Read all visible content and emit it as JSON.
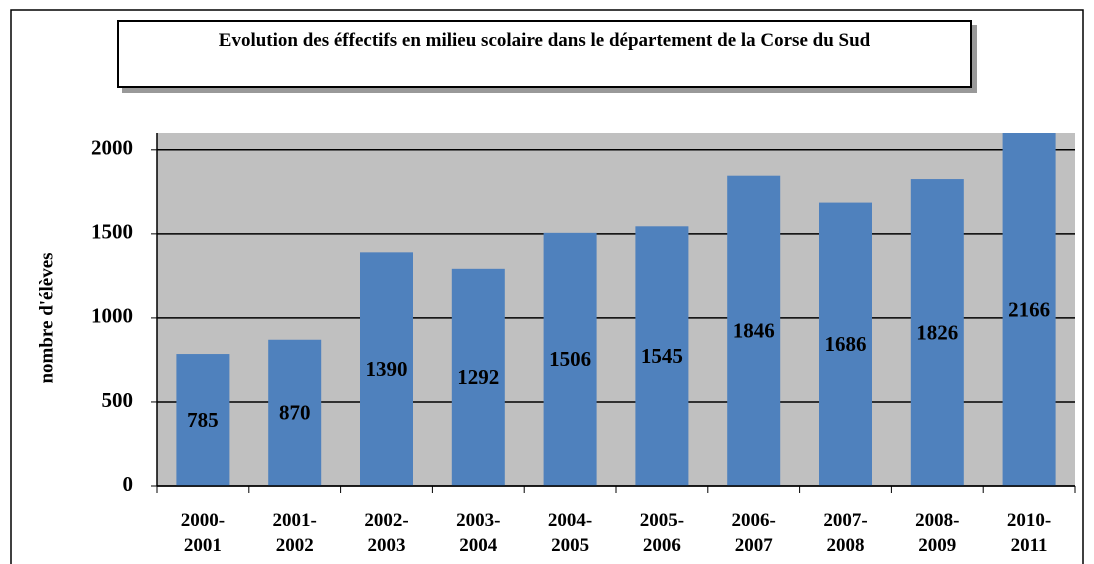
{
  "chart_data": {
    "type": "bar",
    "title": "Evolution  des éffectifs en milieu scolaire dans  le département  de la Corse du Sud",
    "y_label": "nombre  d'élèves",
    "categories": [
      "2000-2001",
      "2001-2002",
      "2002-2003",
      "2003-2004",
      "2004-2005",
      "2005-2006",
      "2006-2007",
      "2007-2008",
      "2008-2009",
      "2010-2011"
    ],
    "values": [
      785,
      870,
      1390,
      1292,
      1506,
      1545,
      1846,
      1686,
      1826,
      2166
    ],
    "color": "#4f81bd",
    "ylim": [
      0,
      2100
    ],
    "yticks": [
      0,
      500,
      1000,
      1500,
      2000
    ],
    "grid": true
  }
}
